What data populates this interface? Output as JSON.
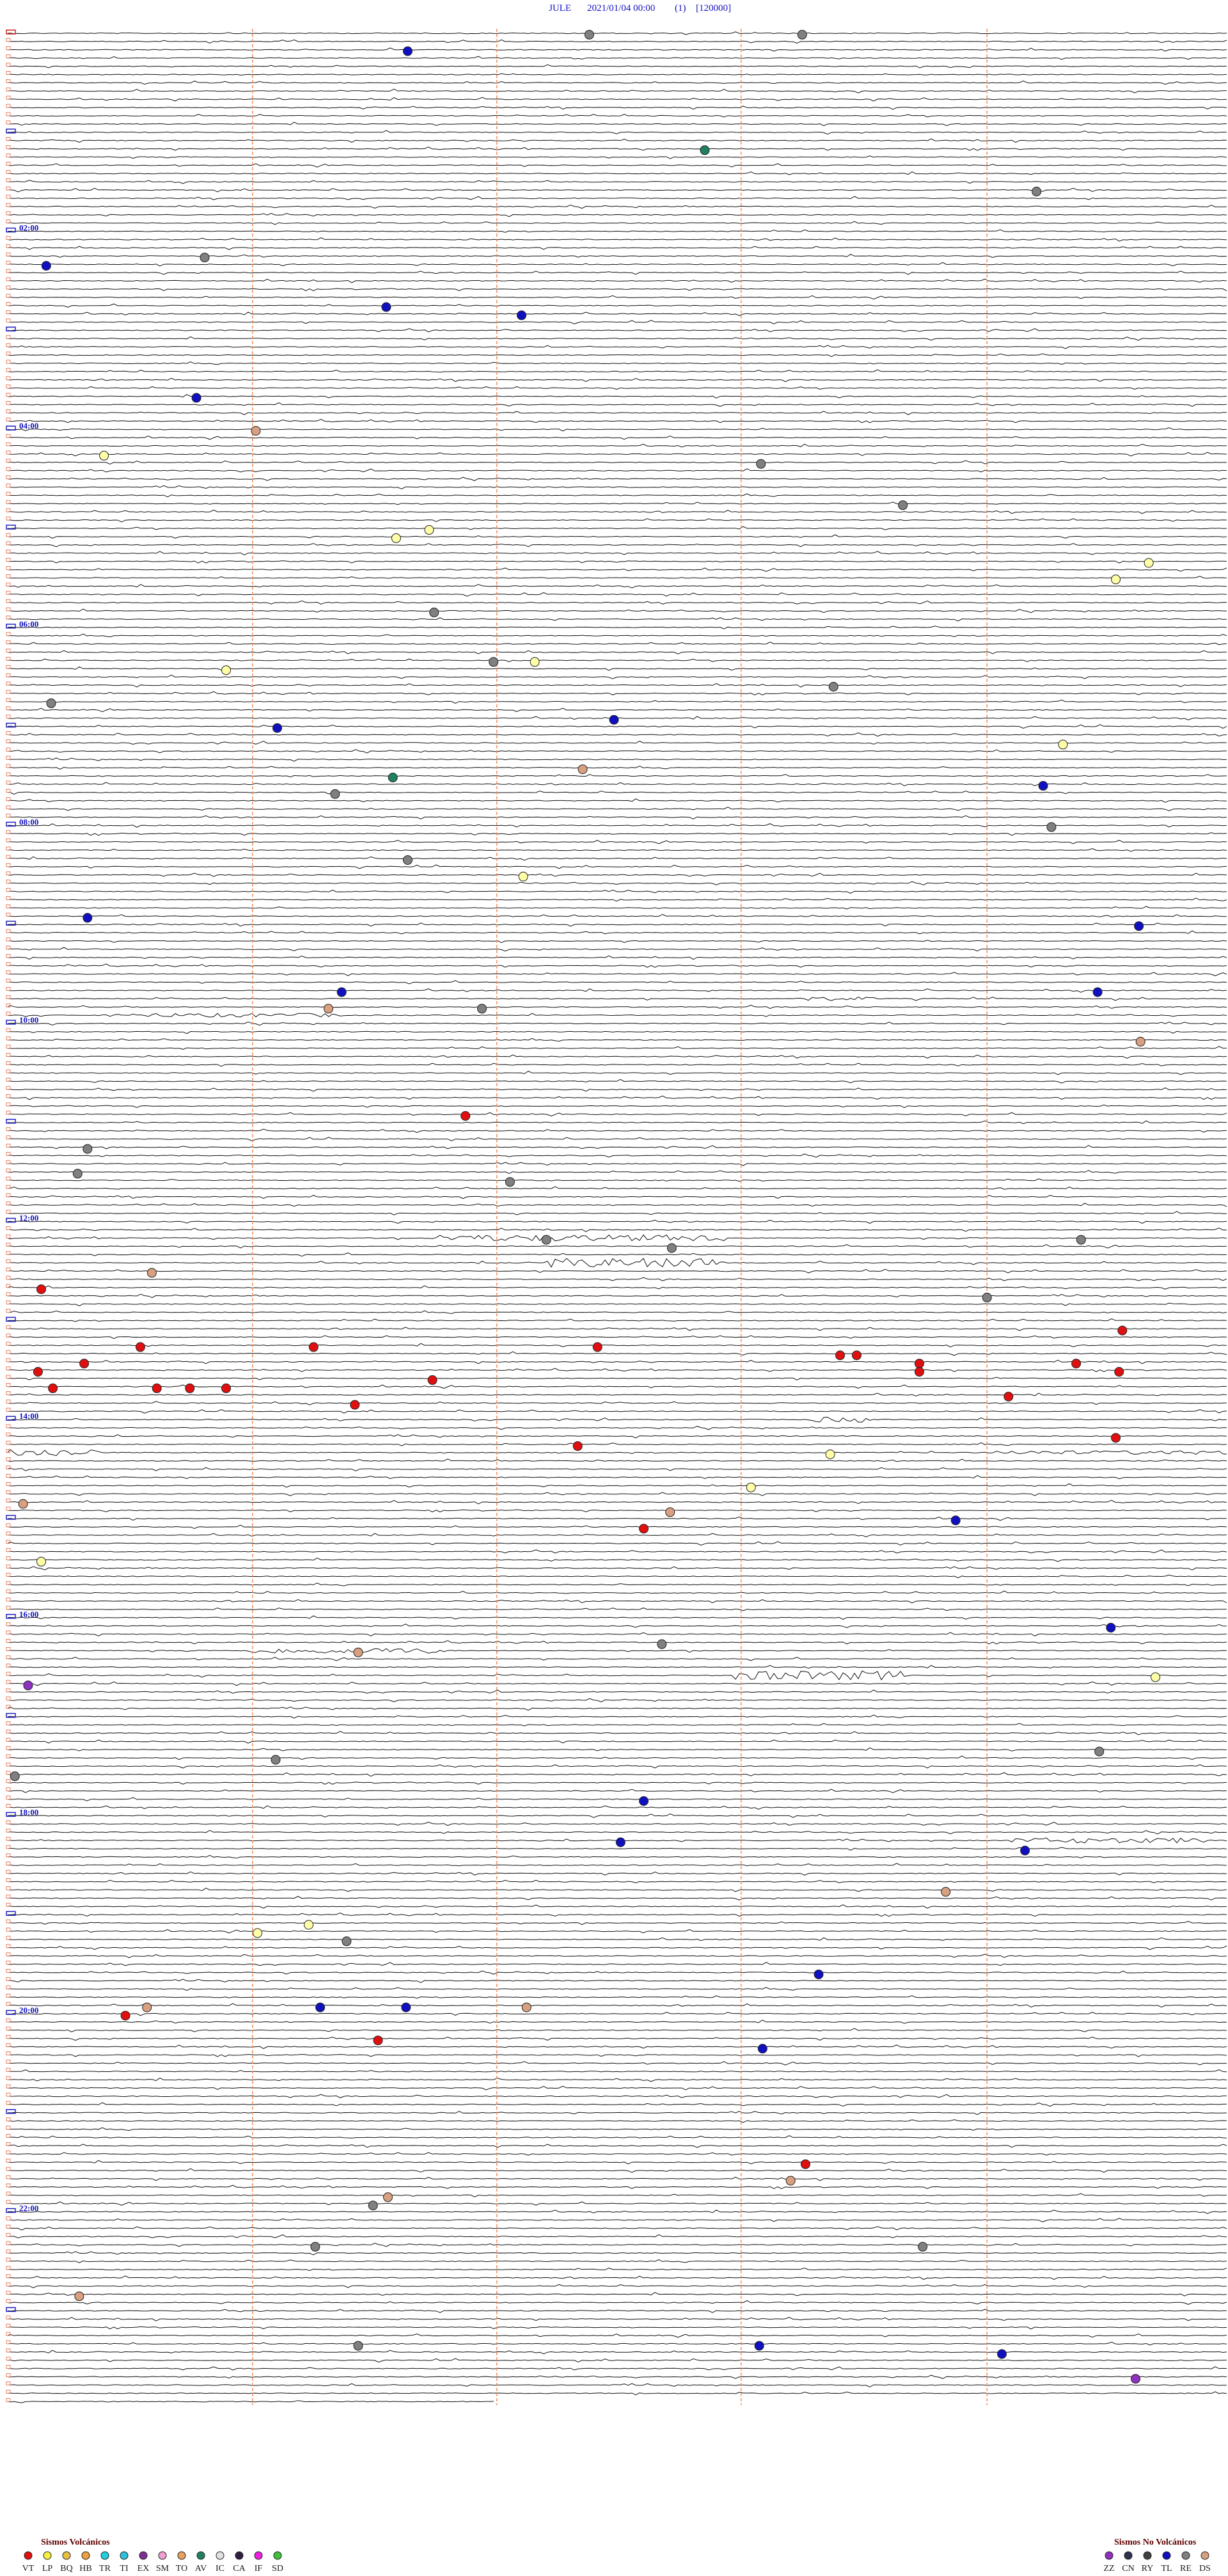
{
  "header": {
    "station": "JULE",
    "datetime": "2021/01/04 00:00",
    "channel": "(1)",
    "scale": "[120000]"
  },
  "hour_labels": [
    "02:00",
    "04:00",
    "06:00",
    "08:00",
    "10:00",
    "12:00",
    "14:00",
    "16:00",
    "18:00",
    "20:00",
    "22:00"
  ],
  "legend": {
    "volcanic": {
      "title": "Sismos Volcánicos",
      "items": [
        {
          "label": "VT",
          "color": "#e01010"
        },
        {
          "label": "LP",
          "color": "#f8f040"
        },
        {
          "label": "BQ",
          "color": "#e8c040"
        },
        {
          "label": "HB",
          "color": "#f0a040"
        },
        {
          "label": "TR",
          "color": "#20d0e0"
        },
        {
          "label": "TI",
          "color": "#30c0d8"
        },
        {
          "label": "EX",
          "color": "#803090"
        },
        {
          "label": "SM",
          "color": "#f0a0d0"
        },
        {
          "label": "TO",
          "color": "#e8a060"
        },
        {
          "label": "AV",
          "color": "#208060"
        },
        {
          "label": "IC",
          "color": "#e0e0e0"
        },
        {
          "label": "CA",
          "color": "#302040"
        },
        {
          "label": "IF",
          "color": "#f020e0"
        },
        {
          "label": "SD",
          "color": "#40c040"
        }
      ]
    },
    "non_volcanic": {
      "title": "Sismos No Volcánicos",
      "items": [
        {
          "label": "ZZ",
          "color": "#9030c0"
        },
        {
          "label": "CN",
          "color": "#303050"
        },
        {
          "label": "RY",
          "color": "#404040"
        },
        {
          "label": "TL",
          "color": "#1010c0"
        },
        {
          "label": "RE",
          "color": "#808080"
        },
        {
          "label": "DS",
          "color": "#d8a080"
        }
      ]
    }
  }
}
